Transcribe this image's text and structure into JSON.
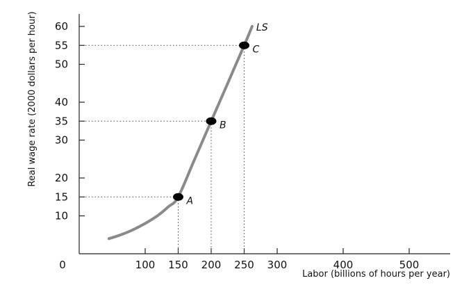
{
  "chart_data": {
    "type": "line",
    "title": "",
    "xlabel": "Labor (billions of hours per year)",
    "ylabel": "Real wage rate (2000 dollars per hour)",
    "origin_label": "0",
    "xlim": [
      0,
      550
    ],
    "ylim": [
      0,
      62
    ],
    "xticks": [
      100,
      150,
      200,
      250,
      300,
      400,
      500
    ],
    "yticks": [
      10,
      15,
      20,
      30,
      35,
      40,
      50,
      55,
      60
    ],
    "grid": false,
    "series": [
      {
        "name": "LS",
        "color": "#8a8a8a",
        "x": [
          45,
          60,
          80,
          100,
          120,
          135,
          150,
          175,
          200,
          225,
          250,
          262
        ],
        "y": [
          4,
          4.8,
          6.2,
          8,
          10.2,
          12.4,
          15,
          25,
          35,
          45,
          55,
          60
        ]
      }
    ],
    "points": [
      {
        "label": "A",
        "x": 150,
        "y": 15
      },
      {
        "label": "B",
        "x": 200,
        "y": 35
      },
      {
        "label": "C",
        "x": 250,
        "y": 55
      }
    ]
  }
}
